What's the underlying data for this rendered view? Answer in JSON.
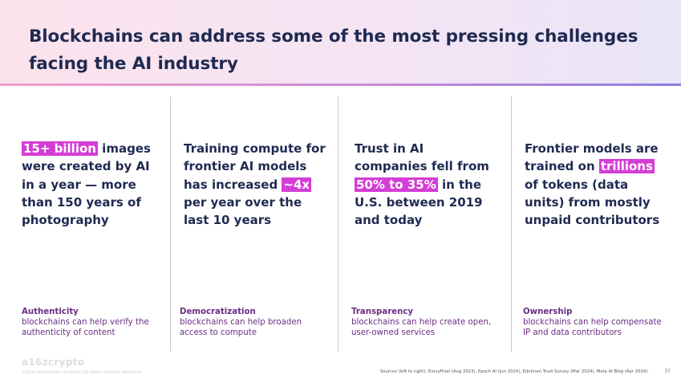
{
  "title": "Blockchains can address some of the most pressing challenges facing the AI industry",
  "colors": {
    "navy": "#1f2a52",
    "highlight": "#d43dd6",
    "category_purple": "#6b2d84"
  },
  "columns": [
    {
      "highlight": "15+ billion",
      "rest": " images were created by AI in a year — more than 150 years of photography",
      "category": "Authenticity",
      "desc": "blockchains can help verify the authenticity of content"
    },
    {
      "before": "Training compute for frontier AI models has increased ",
      "highlight": "~4x",
      "after": " per year over the last 10 years",
      "category": "Democratization",
      "desc": "blockchains can help broaden access to compute"
    },
    {
      "before": "Trust in AI companies fell from ",
      "highlight": "50% to 35%",
      "after": " in the U.S. between 2019 and today",
      "category": "Transparency",
      "desc": "blockchains can help create open, user-owned services"
    },
    {
      "before": "Frontier models are trained on ",
      "highlight": "trillions",
      "after": " of tokens (data units) from mostly unpaid contributors",
      "category": "Ownership",
      "desc": "blockchains can help compensate IP and data contributors"
    }
  ],
  "footer": {
    "logo": "a16zcrypto",
    "copyright": "©2024 Andreessen Horowitz  |  All rights reserved worldwide",
    "sources": "Sources (left to right): EveryPixel (Aug 2023), Epoch AI (Jun 2024), Edelman Trust Survey (Mar 2024), Meta AI Blog (Apr 2024).",
    "page_number": "37"
  }
}
